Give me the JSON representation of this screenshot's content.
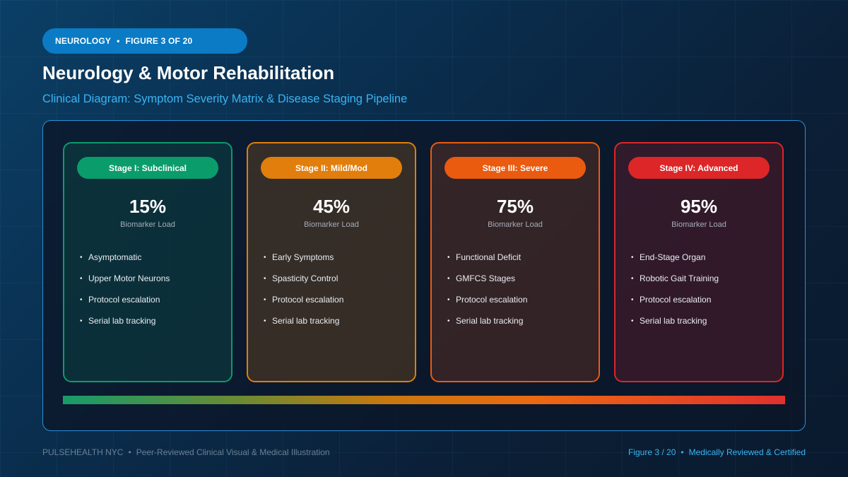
{
  "header": {
    "category": "NEUROLOGY",
    "separator": "•",
    "figure_label": "FIGURE 3 OF 20",
    "title": "Neurology & Motor Rehabilitation",
    "subtitle": "Clinical Diagram: Symptom Severity Matrix & Disease Staging Pipeline"
  },
  "stages": [
    {
      "label": "Stage I: Subclinical",
      "percent": "15%",
      "metric": "Biomarker Load",
      "color": "#0b9c6b",
      "items": [
        "Asymptomatic",
        "Upper Motor Neurons",
        "Protocol escalation",
        "Serial lab tracking"
      ]
    },
    {
      "label": "Stage II: Mild/Mod",
      "percent": "45%",
      "metric": "Biomarker Load",
      "color": "#e17e0c",
      "items": [
        "Early Symptoms",
        "Spasticity Control",
        "Protocol escalation",
        "Serial lab tracking"
      ]
    },
    {
      "label": "Stage III: Severe",
      "percent": "75%",
      "metric": "Biomarker Load",
      "color": "#ea5a0f",
      "items": [
        "Functional Deficit",
        "GMFCS Stages",
        "Protocol escalation",
        "Serial lab tracking"
      ]
    },
    {
      "label": "Stage IV: Advanced",
      "percent": "95%",
      "metric": "Biomarker Load",
      "color": "#dc2628",
      "items": [
        "End-Stage Organ",
        "Robotic Gait Training",
        "Protocol escalation",
        "Serial lab tracking"
      ]
    }
  ],
  "bullet_glyph": "•",
  "footer": {
    "brand": "PULSEHEALTH NYC",
    "separator": "•",
    "tagline": "Peer-Reviewed Clinical Visual & Medical Illustration",
    "figure_ref": "Figure 3 / 20",
    "certification": "Medically Reviewed & Certified"
  },
  "colors": {
    "accent": "#3ab4f2",
    "pill": "#0a7bc4",
    "panel_border": "#2a8fd8"
  }
}
